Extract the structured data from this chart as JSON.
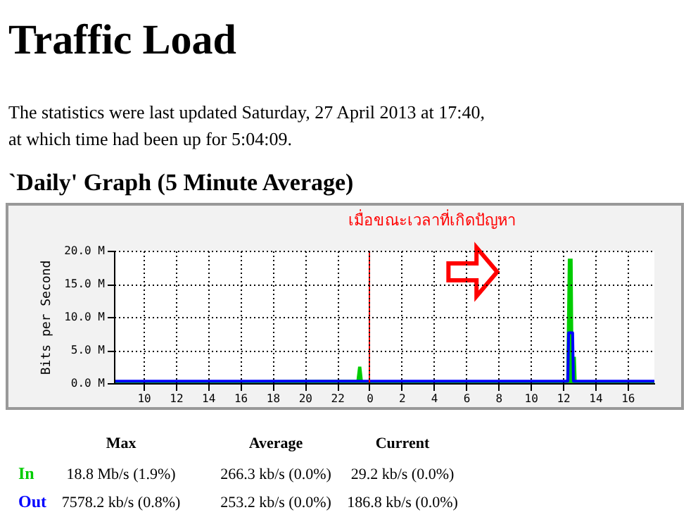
{
  "chart_data": {
    "type": "area",
    "title": "Traffic Load",
    "subtitle": "`Daily' Graph (5 Minute Average)",
    "ylabel": "Bits per Second",
    "annotations": [
      "The statistics were last updated Saturday, 27 April 2013 at 17:40,",
      "at which time had been up for 5:04:09.",
      "เมื่อขณะเวลาที่เกิดปัญหา",
      "Max",
      "Average",
      "Current",
      "18.8 Mb/s (1.9%)",
      "266.3 kb/s (0.0%)",
      "29.2 kb/s (0.0%)",
      "7578.2 kb/s (0.8%)",
      "253.2 kb/s (0.0%)",
      "186.8 kb/s (0.0%)"
    ],
    "xlim": [
      "2013-04-26T08:10",
      "2013-04-27T17:40"
    ],
    "xticks": [
      {
        "value": "2013-04-26T10:00",
        "label": "10"
      },
      {
        "value": "2013-04-26T12:00",
        "label": "12"
      },
      {
        "value": "2013-04-26T14:00",
        "label": "14"
      },
      {
        "value": "2013-04-26T16:00",
        "label": "16"
      },
      {
        "value": "2013-04-26T18:00",
        "label": "18"
      },
      {
        "value": "2013-04-26T20:00",
        "label": "20"
      },
      {
        "value": "2013-04-26T22:00",
        "label": "22"
      },
      {
        "value": "2013-04-27T00:00",
        "label": "0"
      },
      {
        "value": "2013-04-27T02:00",
        "label": "2"
      },
      {
        "value": "2013-04-27T04:00",
        "label": "4"
      },
      {
        "value": "2013-04-27T06:00",
        "label": "6"
      },
      {
        "value": "2013-04-27T08:00",
        "label": "8"
      },
      {
        "value": "2013-04-27T10:00",
        "label": "10"
      },
      {
        "value": "2013-04-27T12:00",
        "label": "12"
      },
      {
        "value": "2013-04-27T14:00",
        "label": "14"
      },
      {
        "value": "2013-04-27T16:00",
        "label": "16"
      }
    ],
    "ylim": [
      0,
      20
    ],
    "yticks": [
      {
        "value": 0,
        "label": "0.0 M"
      },
      {
        "value": 5,
        "label": "5.0 M"
      },
      {
        "value": 10,
        "label": "10.0 M"
      },
      {
        "value": 15,
        "label": "15.0 M"
      },
      {
        "value": 20,
        "label": "20.0 M"
      }
    ],
    "grid": true,
    "ref_lines": [
      {
        "axis": "x",
        "value": "2013-04-27T00:00",
        "color": "#ff0000"
      }
    ],
    "series": [
      {
        "name": "In",
        "type": "area",
        "color": "#00cc00",
        "x": [
          "2013-04-26T08:10",
          "2013-04-26T15:00",
          "2013-04-26T21:00",
          "2013-04-26T23:12",
          "2013-04-26T23:18",
          "2013-04-26T23:30",
          "2013-04-26T23:36",
          "2013-04-27T12:12",
          "2013-04-27T12:18",
          "2013-04-27T12:36",
          "2013-04-27T12:39",
          "2013-04-27T12:48",
          "2013-04-27T12:51",
          "2013-04-27T17:40"
        ],
        "values": [
          0.3,
          0.4,
          0.5,
          0.5,
          2.5,
          2.5,
          0.3,
          0.3,
          18.8,
          18.8,
          4,
          4,
          0.3,
          0.3
        ]
      },
      {
        "name": "Out",
        "type": "line",
        "color": "#0000ff",
        "x": [
          "2013-04-26T08:10",
          "2013-04-27T12:18",
          "2013-04-27T12:21",
          "2013-04-27T12:36",
          "2013-04-27T12:39",
          "2013-04-27T17:40"
        ],
        "values": [
          0.3,
          0.3,
          7.6,
          7.6,
          0.3,
          0.3
        ]
      }
    ]
  }
}
